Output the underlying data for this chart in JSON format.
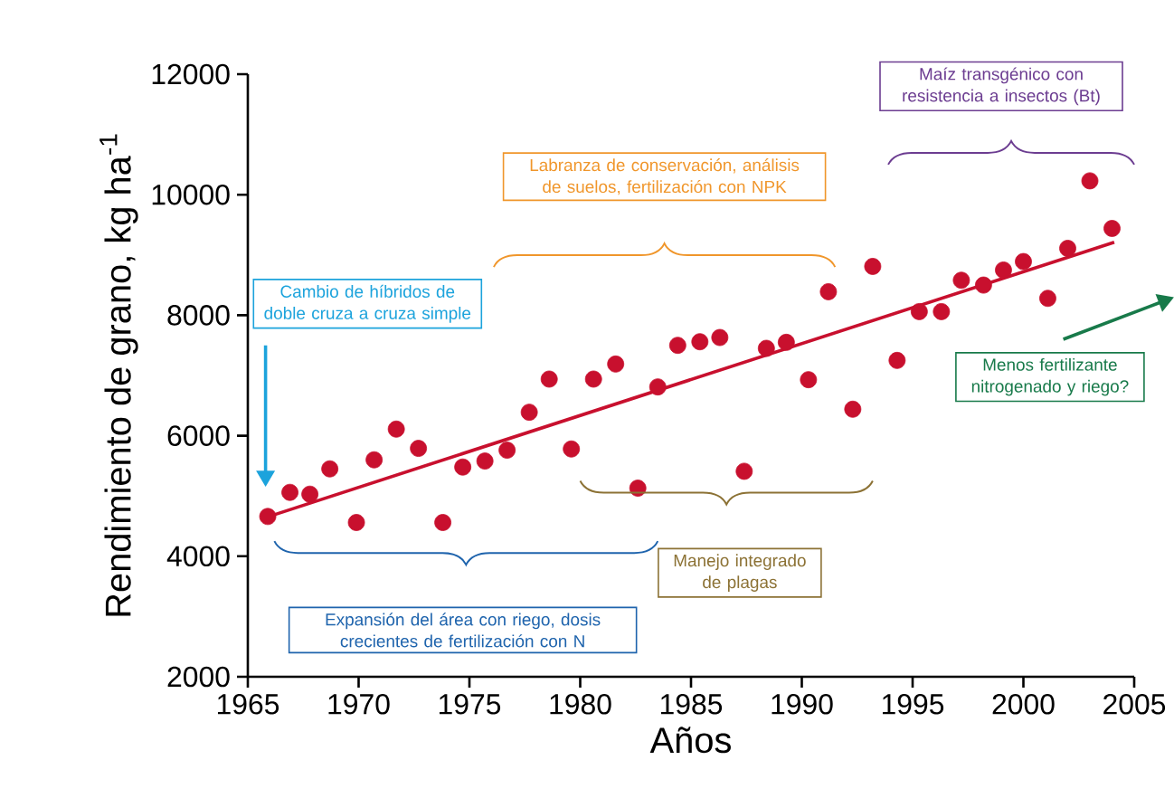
{
  "chart_data": {
    "type": "scatter",
    "xlabel": "Años",
    "ylabel": "Rendimiento de grano, kg ha$^{-1}$",
    "xlim": [
      1965,
      2005
    ],
    "ylim": [
      2000,
      12000
    ],
    "xticks": [
      1965,
      1970,
      1975,
      1980,
      1985,
      1990,
      1995,
      2000,
      2005
    ],
    "yticks": [
      2000,
      4000,
      6000,
      8000,
      10000,
      12000
    ],
    "series": [
      {
        "marker": "circle",
        "color": "#c8102e",
        "x": [
          1965.9,
          1966.9,
          1967.8,
          1968.7,
          1969.9,
          1970.7,
          1971.7,
          1972.7,
          1973.8,
          1974.7,
          1975.7,
          1976.7,
          1977.7,
          1978.6,
          1979.6,
          1980.6,
          1981.6,
          1982.6,
          1983.5,
          1984.4,
          1985.4,
          1986.3,
          1987.4,
          1988.4,
          1989.3,
          1990.3,
          1991.2,
          1992.3,
          1993.2,
          1994.3,
          1995.3,
          1996.3,
          1997.2,
          1998.2,
          1999.1,
          2000.0,
          2001.1,
          2002.0,
          2003.0,
          2004.0
        ],
        "values": [
          4660,
          5060,
          5030,
          5450,
          4560,
          5600,
          6110,
          5790,
          4560,
          5480,
          5580,
          5760,
          6390,
          6940,
          5780,
          6940,
          7190,
          5130,
          6810,
          7500,
          7560,
          7630,
          5410,
          7450,
          7550,
          6930,
          8390,
          6440,
          8810,
          7250,
          8060,
          8060,
          8580,
          8500,
          8750,
          8890,
          8280,
          9110,
          10230,
          9440
        ]
      },
      {
        "type": "line",
        "color": "#c8102e",
        "x": [
          1966.2,
          2004.1
        ],
        "values": [
          4690,
          9210
        ]
      }
    ],
    "annotations": [
      "Cambio de híbridos de doble cruza a cruza simple",
      "Expansión del área con riego, dosis crecientes de fertilización con N",
      "Labranza de conservación, análisis de suelos, fertilización con NPK",
      "Manejo integrado de plagas",
      "Maíz transgénico con resistencia a insectos (Bt)",
      "Menos fertilizante nitrogenado y riego?"
    ]
  }
}
